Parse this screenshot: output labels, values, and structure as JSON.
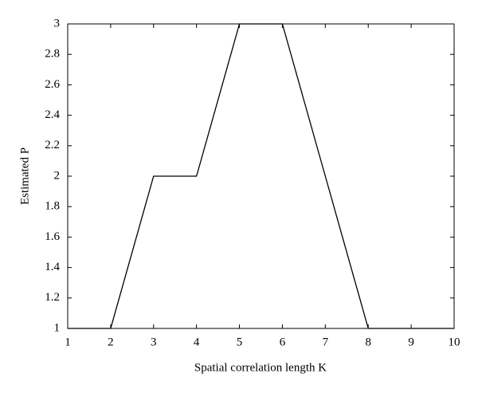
{
  "chart_data": {
    "type": "line",
    "x_label": "Spatial correlation length K",
    "y_label": "Estimated P",
    "x": [
      1,
      2,
      3,
      4,
      5,
      6,
      7,
      8,
      9,
      10
    ],
    "series": [
      {
        "color": "#000000",
        "values": [
          1,
          1,
          2,
          2,
          3,
          3,
          2,
          1,
          1,
          1
        ]
      }
    ],
    "xlim": [
      1,
      10
    ],
    "xticks": [
      1,
      2,
      3,
      4,
      5,
      6,
      7,
      8,
      9,
      10
    ],
    "ylim": [
      1,
      3
    ],
    "yticks": [
      1,
      1.2,
      1.4,
      1.6,
      1.8,
      2,
      2.2,
      2.4,
      2.6,
      2.8,
      3
    ]
  }
}
